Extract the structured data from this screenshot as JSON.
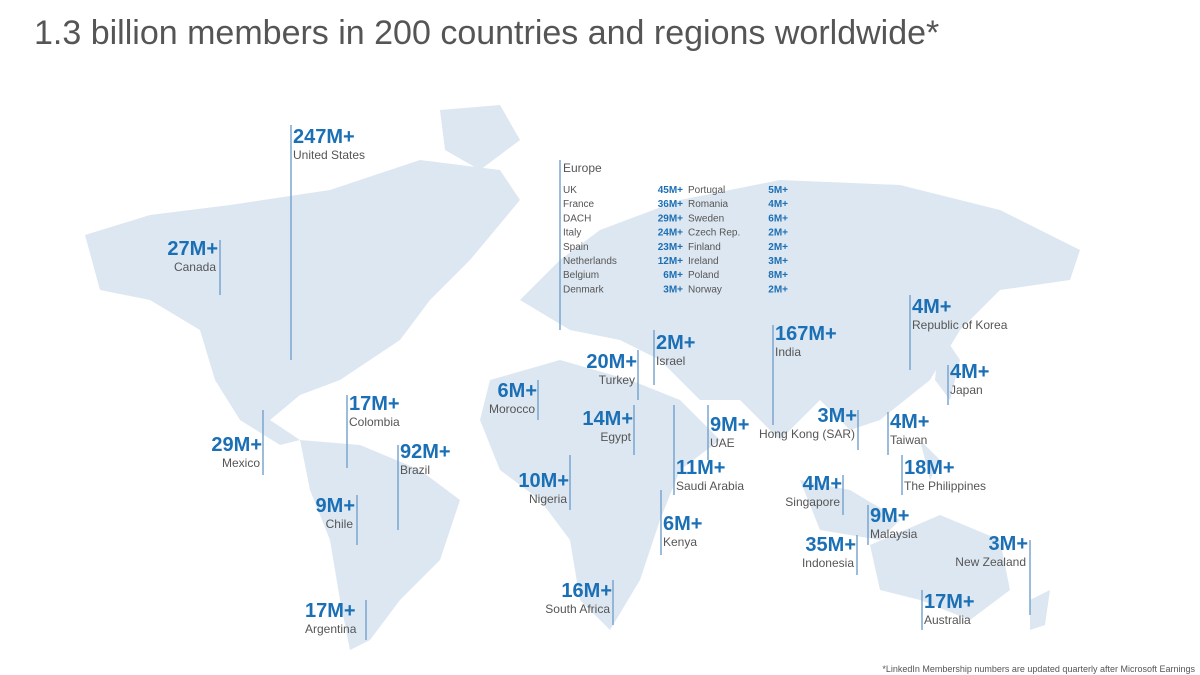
{
  "title": "1.3 billion members in 200 countries and regions worldwide*",
  "europe": {
    "heading": "Europe",
    "left": [
      {
        "country": "UK",
        "value": "45M+"
      },
      {
        "country": "France",
        "value": "36M+"
      },
      {
        "country": "DACH",
        "value": "29M+"
      },
      {
        "country": "Italy",
        "value": "24M+"
      },
      {
        "country": "Spain",
        "value": "23M+"
      },
      {
        "country": "Netherlands",
        "value": "12M+"
      },
      {
        "country": "Belgium",
        "value": "6M+"
      },
      {
        "country": "Denmark",
        "value": "3M+"
      }
    ],
    "right": [
      {
        "country": "Portugal",
        "value": "5M+"
      },
      {
        "country": "Romania",
        "value": "4M+"
      },
      {
        "country": "Sweden",
        "value": "6M+"
      },
      {
        "country": "Czech Rep.",
        "value": "2M+"
      },
      {
        "country": "Finland",
        "value": "2M+"
      },
      {
        "country": "Ireland",
        "value": "3M+"
      },
      {
        "country": "Poland",
        "value": "8M+"
      },
      {
        "country": "Norway",
        "value": "2M+"
      }
    ]
  },
  "markets": [
    {
      "value": "247M+",
      "label": "United States"
    },
    {
      "value": "27M+",
      "label": "Canada"
    },
    {
      "value": "29M+",
      "label": "Mexico"
    },
    {
      "value": "17M+",
      "label": "Colombia"
    },
    {
      "value": "92M+",
      "label": "Brazil"
    },
    {
      "value": "9M+",
      "label": "Chile"
    },
    {
      "value": "17M+",
      "label": "Argentina"
    },
    {
      "value": "6M+",
      "label": "Morocco"
    },
    {
      "value": "20M+",
      "label": "Turkey"
    },
    {
      "value": "2M+",
      "label": "Israel"
    },
    {
      "value": "14M+",
      "label": "Egypt"
    },
    {
      "value": "10M+",
      "label": "Nigeria"
    },
    {
      "value": "16M+",
      "label": "South Africa"
    },
    {
      "value": "11M+",
      "label": "Saudi Arabia"
    },
    {
      "value": "9M+",
      "label": "UAE"
    },
    {
      "value": "6M+",
      "label": "Kenya"
    },
    {
      "value": "167M+",
      "label": "India"
    },
    {
      "value": "3M+",
      "label": "Hong Kong (SAR)"
    },
    {
      "value": "4M+",
      "label": "Republic of Korea"
    },
    {
      "value": "4M+",
      "label": "Japan"
    },
    {
      "value": "4M+",
      "label": "Taiwan"
    },
    {
      "value": "18M+",
      "label": "The Philippines"
    },
    {
      "value": "4M+",
      "label": "Singapore"
    },
    {
      "value": "9M+",
      "label": "Malaysia"
    },
    {
      "value": "35M+",
      "label": "Indonesia"
    },
    {
      "value": "17M+",
      "label": "Australia"
    },
    {
      "value": "3M+",
      "label": "New Zealand"
    }
  ],
  "footnote": "*LinkedIn Membership numbers are updated quarterly after Microsoft Earnings"
}
